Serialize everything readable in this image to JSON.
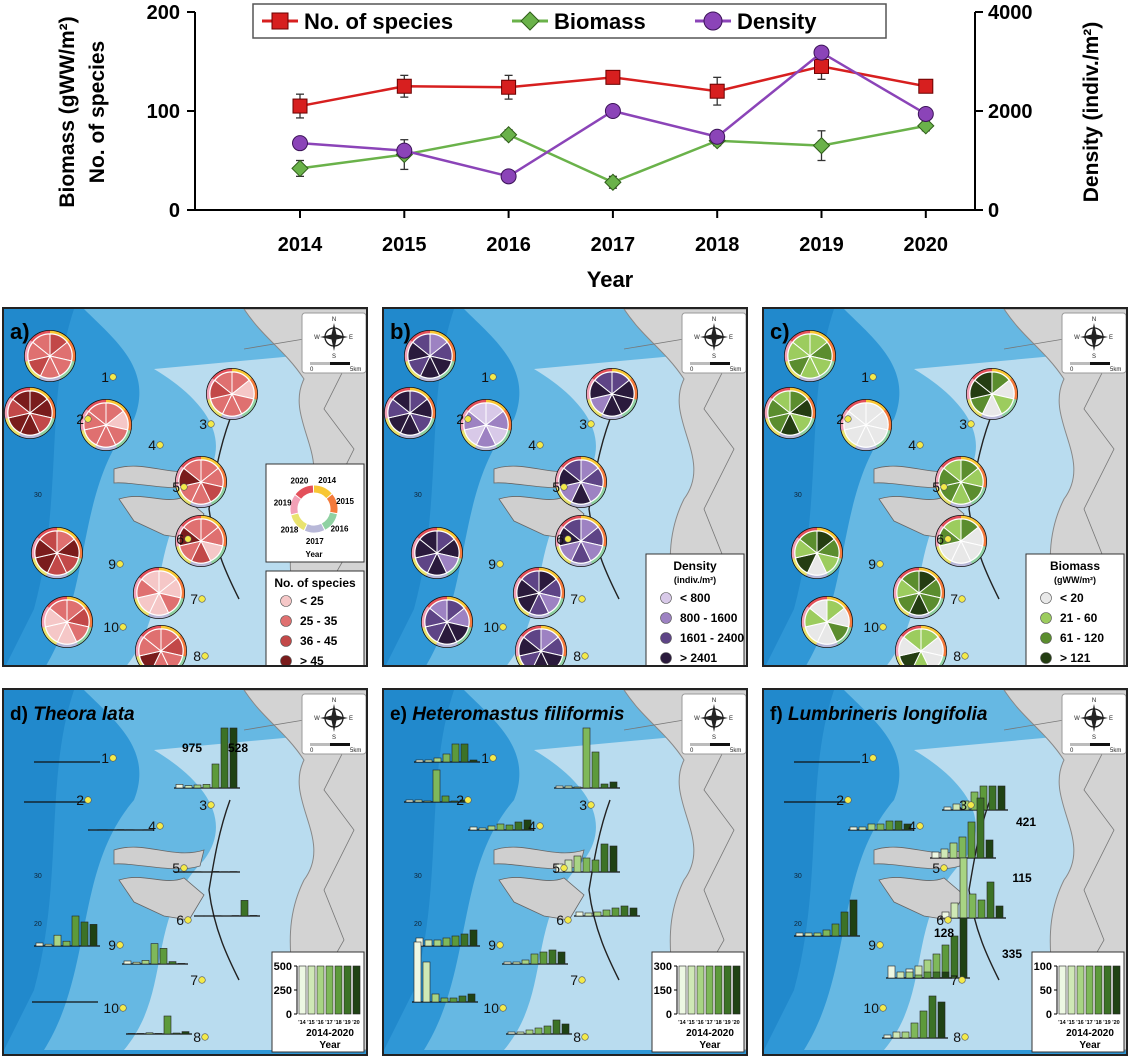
{
  "chart_data": {
    "type": "line",
    "x": [
      2014,
      2015,
      2016,
      2017,
      2018,
      2019,
      2020
    ],
    "xlabel": "Year",
    "ylabel_left_1": "No. of species",
    "ylabel_left_2": "Biomass (gWW/m²)",
    "ylabel_right": "Density (indiv./m²)",
    "ylim_left": [
      0,
      200
    ],
    "ylim_right": [
      0,
      4000
    ],
    "yticks_left": [
      "0",
      "100",
      "200"
    ],
    "yticks_right": [
      "0",
      "2000",
      "4000"
    ],
    "xticks": [
      "2014",
      "2015",
      "2016",
      "2017",
      "2018",
      "2019",
      "2020"
    ],
    "legend": [
      "No. of species",
      "Biomass",
      "Density"
    ],
    "series": [
      {
        "name": "No. of species",
        "axis": "left",
        "color": "#d71f1f",
        "marker": "square",
        "values": [
          105,
          125,
          124,
          134,
          120,
          145,
          125
        ],
        "err": [
          12,
          11,
          12,
          5,
          14,
          13,
          4
        ]
      },
      {
        "name": "Biomass",
        "axis": "left",
        "color": "#6ab24a",
        "marker": "diamond",
        "values": [
          42,
          56,
          76,
          28,
          70,
          65,
          85
        ],
        "err": [
          8,
          15,
          5,
          6,
          5,
          15,
          5
        ]
      },
      {
        "name": "Density",
        "axis": "right",
        "color": "#8b44b8",
        "marker": "circle",
        "values": [
          1350,
          1200,
          680,
          2000,
          1480,
          3180,
          1940
        ],
        "err": [
          0,
          0,
          0,
          0,
          0,
          0,
          0
        ]
      }
    ]
  },
  "panels": {
    "a": {
      "label": "a)",
      "legend_title": "No. of species",
      "legend_items": [
        "< 25",
        "25 - 35",
        "36 - 45",
        "> 45"
      ],
      "legend_colors": [
        "#f5c7c7",
        "#df7070",
        "#c24848",
        "#7a1c1c"
      ],
      "ring_years": [
        "2014",
        "2015",
        "2016",
        "2017",
        "2018",
        "2019",
        "2020"
      ],
      "ring_caption": "Year"
    },
    "b": {
      "label": "b)",
      "legend_title": "Density",
      "legend_sub": "(indiv./m²)",
      "legend_items": [
        "< 800",
        "800 - 1600",
        "1601 - 2400",
        "> 2401"
      ],
      "legend_colors": [
        "#d8c9e8",
        "#9d82c2",
        "#5e4486",
        "#2a1a3c"
      ]
    },
    "c": {
      "label": "c)",
      "legend_title": "Biomass",
      "legend_sub": "(gWW/m²)",
      "legend_items": [
        "< 20",
        "21 - 60",
        "61 - 120",
        "> 121"
      ],
      "legend_colors": [
        "#e8e8e8",
        "#9ccc5e",
        "#5b8d2e",
        "#243d12"
      ]
    },
    "d": {
      "label": "d)",
      "species": "Theora lata",
      "inset_ticks": [
        "500",
        "250",
        "0"
      ],
      "bar_labels": [
        "975",
        "528"
      ]
    },
    "e": {
      "label": "e)",
      "species": "Heteromastus filiformis",
      "inset_ticks": [
        "300",
        "150",
        "0"
      ]
    },
    "f": {
      "label": "f)",
      "species": "Lumbrineris longifolia",
      "inset_ticks": [
        "100",
        "50",
        "0"
      ],
      "bar_labels": [
        "421",
        "115",
        "128",
        "335"
      ]
    }
  },
  "stations": [
    "1",
    "2",
    "3",
    "4",
    "5",
    "6",
    "7",
    "8",
    "9",
    "10"
  ],
  "inset_years": [
    "'14",
    "'15",
    "'16",
    "'17",
    "'18",
    "'19",
    "'20"
  ],
  "inset_caption": "2014-2020",
  "inset_xlabel": "Year",
  "compass": {
    "n": "N",
    "s": "S",
    "e": "E",
    "w": "W",
    "scale_start": "0",
    "scale_end": "5km"
  },
  "map_lat_labels": [
    "30",
    "20"
  ],
  "colors": {
    "sea_deep": "#2f97d6",
    "sea_mid": "#66b8e3",
    "sea_shallow": "#b9dcef",
    "land": "#d3d3d3",
    "station": "#f3ea4a"
  }
}
